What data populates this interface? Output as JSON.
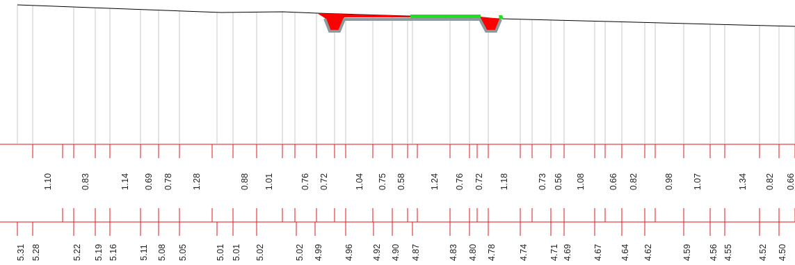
{
  "colors": {
    "terrain": "#000000",
    "gridline": "#c8c8c8",
    "band": "#e8131b",
    "cut": "#ff0000",
    "fill": "#22dd22",
    "road": "#8c9aa0",
    "label": "#222222"
  },
  "distances": [
    "1.10",
    "0.83",
    "1.14",
    "0.69",
    "0.78",
    "1.28",
    "0.88",
    "1.01",
    "0.76",
    "0.72",
    "1.04",
    "0.75",
    "0.58",
    "1.24",
    "0.76",
    "0.72",
    "1.18",
    "0.73",
    "0.56",
    "1.08",
    "0.66",
    "0.82",
    "0.98",
    "1.07",
    "1.34",
    "0.82",
    "0.66"
  ],
  "elevations": [
    "5.31",
    "5.28",
    "5.22",
    "5.19",
    "5.16",
    "5.11",
    "5.08",
    "5.05",
    "5.01",
    "5.01",
    "5.02",
    "5.02",
    "4.99",
    "4.96",
    "4.92",
    "4.90",
    "4.87",
    "4.83",
    "4.80",
    "4.78",
    "4.74",
    "4.71",
    "4.69",
    "4.67",
    "4.64",
    "4.62",
    "4.59",
    "4.56",
    "4.55",
    "4.52",
    "4.50"
  ]
}
